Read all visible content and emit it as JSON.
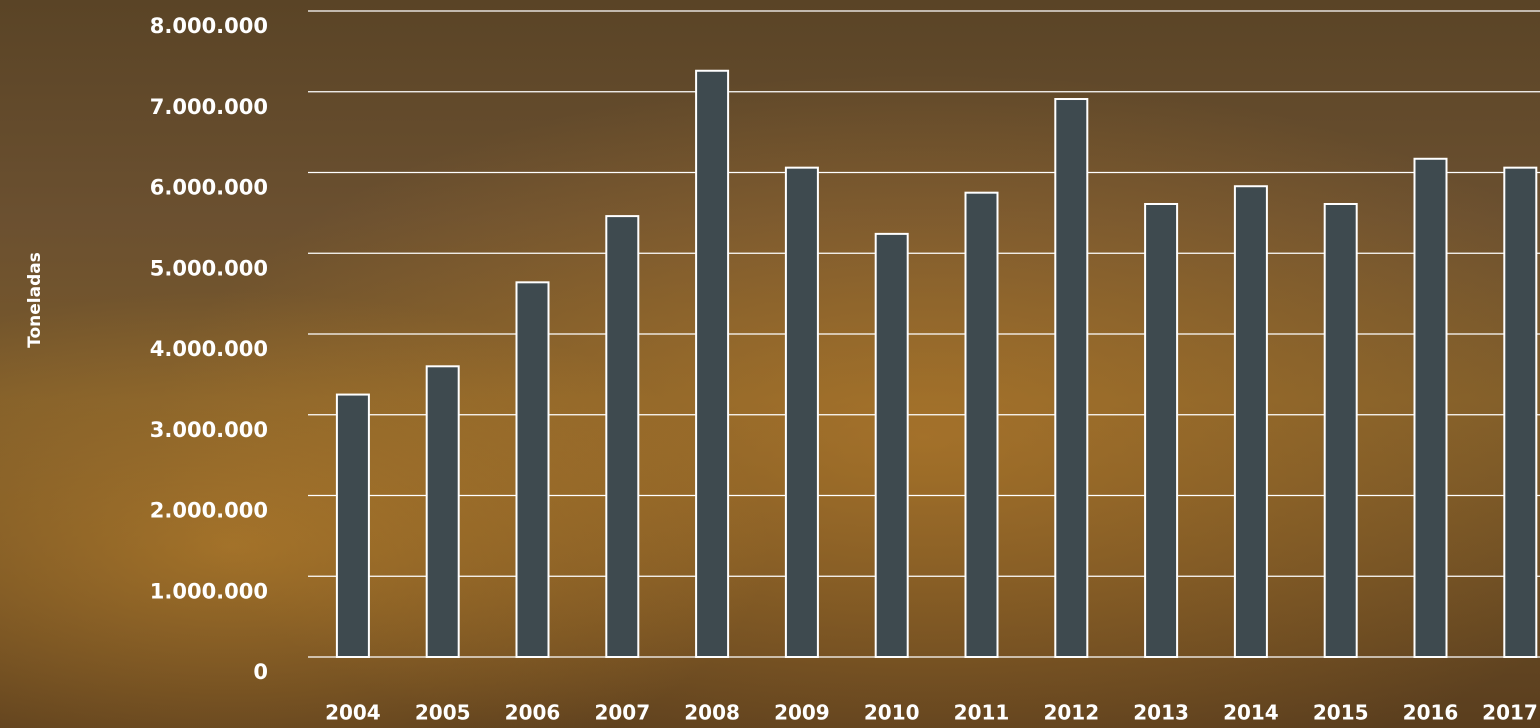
{
  "chart_data": {
    "type": "bar",
    "y_axis_label": "Toneladas",
    "categories": [
      "2004",
      "2005",
      "2006",
      "2007",
      "2008",
      "2009",
      "2010",
      "2011",
      "2012",
      "2013",
      "2014",
      "2015",
      "2016",
      "2017"
    ],
    "values": [
      3250000,
      3600000,
      4640000,
      5460000,
      7260000,
      6060000,
      5240000,
      5750000,
      6910000,
      5610000,
      5830000,
      5610000,
      6170000,
      6060000
    ],
    "color": "#3e4a4f",
    "ylim": [
      0,
      8000000
    ],
    "yticks": [
      {
        "value": 0,
        "label": "0"
      },
      {
        "value": 1000000,
        "label": "1.000.000"
      },
      {
        "value": 2000000,
        "label": "2.000.000"
      },
      {
        "value": 3000000,
        "label": "3.000.000"
      },
      {
        "value": 4000000,
        "label": "4.000.000"
      },
      {
        "value": 5000000,
        "label": "5.000.000"
      },
      {
        "value": 6000000,
        "label": "6.000.000"
      },
      {
        "value": 7000000,
        "label": "7.000.000"
      },
      {
        "value": 8000000,
        "label": "8.000.000"
      }
    ],
    "grid": true
  }
}
